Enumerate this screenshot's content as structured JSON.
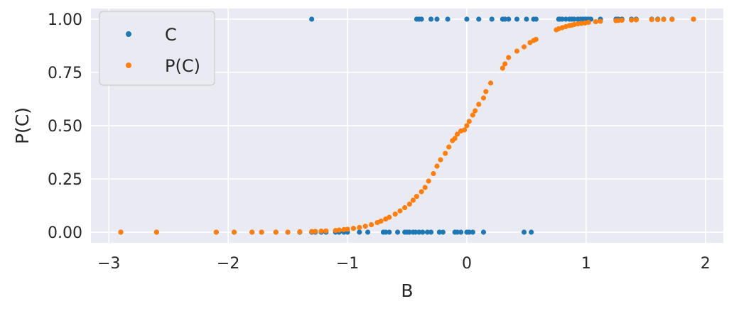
{
  "chart_data": {
    "type": "scatter",
    "xlabel": "B",
    "ylabel": "P(C)",
    "xlim": [
      -3.15,
      2.15
    ],
    "ylim": [
      -0.05,
      1.05
    ],
    "x_ticks": [
      -3,
      -2,
      -1,
      0,
      1,
      2
    ],
    "x_tick_labels": [
      "−3",
      "−2",
      "−1",
      "0",
      "1",
      "2"
    ],
    "y_ticks": [
      0.0,
      0.25,
      0.5,
      0.75,
      1.0
    ],
    "y_tick_labels": [
      "0.00",
      "0.25",
      "0.50",
      "0.75",
      "1.00"
    ],
    "grid": true,
    "legend_position": "upper-left",
    "series": [
      {
        "name": "C",
        "color": "#1f77b4",
        "points": [
          [
            -2.9,
            0
          ],
          [
            -2.6,
            0
          ],
          [
            -2.1,
            0
          ],
          [
            -1.95,
            0
          ],
          [
            -1.8,
            0
          ],
          [
            -1.72,
            0
          ],
          [
            -1.6,
            0
          ],
          [
            -1.5,
            0
          ],
          [
            -1.4,
            0
          ],
          [
            -1.3,
            1
          ],
          [
            -1.3,
            0
          ],
          [
            -1.27,
            0
          ],
          [
            -1.22,
            0
          ],
          [
            -1.18,
            0
          ],
          [
            -1.1,
            0
          ],
          [
            -1.07,
            0
          ],
          [
            -1.03,
            0
          ],
          [
            -1.0,
            0
          ],
          [
            -0.9,
            0
          ],
          [
            -0.83,
            0
          ],
          [
            -0.7,
            0
          ],
          [
            -0.68,
            0
          ],
          [
            -0.65,
            0
          ],
          [
            -0.58,
            0
          ],
          [
            -0.52,
            0
          ],
          [
            -0.5,
            0
          ],
          [
            -0.48,
            0
          ],
          [
            -0.45,
            0
          ],
          [
            -0.43,
            0
          ],
          [
            -0.4,
            0
          ],
          [
            -0.37,
            0
          ],
          [
            -0.33,
            0
          ],
          [
            -0.3,
            0
          ],
          [
            -0.23,
            0
          ],
          [
            -0.2,
            0
          ],
          [
            -0.1,
            0
          ],
          [
            -0.08,
            0
          ],
          [
            -0.05,
            0
          ],
          [
            0.0,
            0
          ],
          [
            0.02,
            0
          ],
          [
            0.05,
            0
          ],
          [
            0.14,
            0
          ],
          [
            0.48,
            0
          ],
          [
            0.54,
            0
          ],
          [
            -0.42,
            1
          ],
          [
            -0.4,
            1
          ],
          [
            -0.38,
            1
          ],
          [
            -0.3,
            1
          ],
          [
            -0.25,
            1
          ],
          [
            -0.16,
            1
          ],
          [
            0.0,
            1
          ],
          [
            0.1,
            1
          ],
          [
            0.21,
            1
          ],
          [
            0.3,
            1
          ],
          [
            0.32,
            1
          ],
          [
            0.35,
            1
          ],
          [
            0.42,
            1
          ],
          [
            0.5,
            1
          ],
          [
            0.56,
            1
          ],
          [
            0.58,
            1
          ],
          [
            0.77,
            1
          ],
          [
            0.78,
            1
          ],
          [
            0.8,
            1
          ],
          [
            0.83,
            1
          ],
          [
            0.86,
            1
          ],
          [
            0.88,
            1
          ],
          [
            0.9,
            1
          ],
          [
            0.93,
            1
          ],
          [
            0.95,
            1
          ],
          [
            0.97,
            1
          ],
          [
            0.99,
            1
          ],
          [
            1.0,
            1
          ],
          [
            1.02,
            1
          ],
          [
            1.04,
            1
          ],
          [
            1.12,
            1
          ],
          [
            1.25,
            1
          ],
          [
            1.27,
            1
          ],
          [
            1.3,
            1
          ],
          [
            1.38,
            1
          ],
          [
            1.42,
            1
          ],
          [
            1.55,
            1
          ],
          [
            1.6,
            1
          ],
          [
            1.65,
            1
          ],
          [
            1.72,
            1
          ],
          [
            1.9,
            1
          ]
        ]
      },
      {
        "name": "P(C)",
        "color": "#ff7f0e",
        "points": [
          [
            -2.9,
            0.0
          ],
          [
            -2.6,
            0.0
          ],
          [
            -2.1,
            0.0
          ],
          [
            -1.95,
            0.0
          ],
          [
            -1.8,
            0.0
          ],
          [
            -1.72,
            0.0
          ],
          [
            -1.6,
            0.0
          ],
          [
            -1.5,
            0.0
          ],
          [
            -1.4,
            0.002
          ],
          [
            -1.3,
            0.003
          ],
          [
            -1.27,
            0.004
          ],
          [
            -1.22,
            0.005
          ],
          [
            -1.18,
            0.006
          ],
          [
            -1.1,
            0.008
          ],
          [
            -1.07,
            0.01
          ],
          [
            -1.03,
            0.012
          ],
          [
            -1.0,
            0.014
          ],
          [
            -0.95,
            0.018
          ],
          [
            -0.9,
            0.022
          ],
          [
            -0.85,
            0.028
          ],
          [
            -0.8,
            0.035
          ],
          [
            -0.75,
            0.045
          ],
          [
            -0.72,
            0.052
          ],
          [
            -0.68,
            0.062
          ],
          [
            -0.65,
            0.07
          ],
          [
            -0.6,
            0.085
          ],
          [
            -0.56,
            0.1
          ],
          [
            -0.52,
            0.115
          ],
          [
            -0.48,
            0.132
          ],
          [
            -0.45,
            0.15
          ],
          [
            -0.42,
            0.168
          ],
          [
            -0.38,
            0.19
          ],
          [
            -0.35,
            0.21
          ],
          [
            -0.32,
            0.24
          ],
          [
            -0.28,
            0.275
          ],
          [
            -0.25,
            0.31
          ],
          [
            -0.22,
            0.34
          ],
          [
            -0.18,
            0.37
          ],
          [
            -0.15,
            0.4
          ],
          [
            -0.12,
            0.43
          ],
          [
            -0.1,
            0.44
          ],
          [
            -0.08,
            0.46
          ],
          [
            -0.05,
            0.475
          ],
          [
            -0.02,
            0.48
          ],
          [
            0.0,
            0.5
          ],
          [
            0.02,
            0.52
          ],
          [
            0.05,
            0.55
          ],
          [
            0.07,
            0.57
          ],
          [
            0.1,
            0.6
          ],
          [
            0.14,
            0.63
          ],
          [
            0.16,
            0.66
          ],
          [
            0.2,
            0.7
          ],
          [
            0.3,
            0.77
          ],
          [
            0.32,
            0.79
          ],
          [
            0.35,
            0.82
          ],
          [
            0.42,
            0.85
          ],
          [
            0.48,
            0.87
          ],
          [
            0.53,
            0.89
          ],
          [
            0.56,
            0.9
          ],
          [
            0.58,
            0.905
          ],
          [
            0.75,
            0.95
          ],
          [
            0.77,
            0.955
          ],
          [
            0.8,
            0.96
          ],
          [
            0.83,
            0.965
          ],
          [
            0.86,
            0.97
          ],
          [
            0.88,
            0.972
          ],
          [
            0.9,
            0.975
          ],
          [
            0.93,
            0.978
          ],
          [
            0.96,
            0.98
          ],
          [
            0.99,
            0.982
          ],
          [
            1.02,
            0.985
          ],
          [
            1.08,
            0.988
          ],
          [
            1.12,
            0.99
          ],
          [
            1.25,
            0.993
          ],
          [
            1.27,
            0.994
          ],
          [
            1.3,
            0.995
          ],
          [
            1.38,
            0.996
          ],
          [
            1.42,
            0.997
          ],
          [
            1.55,
            0.998
          ],
          [
            1.6,
            0.998
          ],
          [
            1.65,
            0.999
          ],
          [
            1.72,
            0.999
          ],
          [
            1.9,
            1.0
          ]
        ]
      }
    ]
  }
}
